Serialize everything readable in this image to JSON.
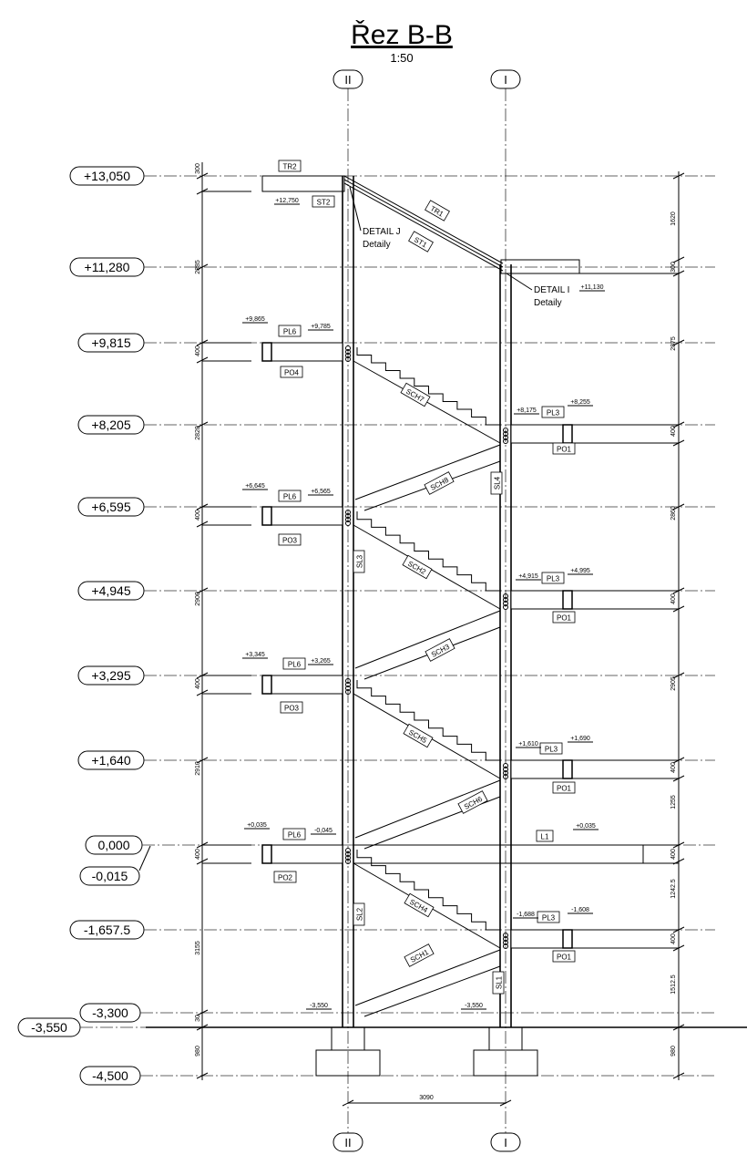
{
  "title": "Řez B-B",
  "scale": "1:50",
  "axes": {
    "left": "II",
    "right": "I"
  },
  "levels": [
    "+13,050",
    "+11,280",
    "+9,815",
    "+8,205",
    "+6,595",
    "+4,945",
    "+3,295",
    "+1,640",
    "0,000",
    "-0,015",
    "-1,657.5",
    "-3,300",
    "-3,550",
    "-4,500"
  ],
  "dims_left": [
    "300",
    "2885",
    "400",
    "2820",
    "400",
    "2900",
    "400",
    "2910",
    "400",
    "3155",
    "30",
    "980"
  ],
  "dims_right": [
    "1620",
    "300",
    "2875",
    "400",
    "2860",
    "400",
    "2905",
    "400",
    "1255",
    "400",
    "1242.5",
    "400",
    "1512.5",
    "980"
  ],
  "dim_bottom": "3090",
  "tags": [
    "TR2",
    "ST2",
    "TR1",
    "ST1",
    "PL6",
    "PL6",
    "PL6",
    "PL6",
    "PO4",
    "PO3",
    "PO3",
    "PO2",
    "PL3",
    "PL3",
    "PL3",
    "PL3",
    "PO1",
    "PO1",
    "PO1",
    "PO1",
    "SCH7",
    "SCH8",
    "SCH2",
    "SCH3",
    "SCH5",
    "SCH6",
    "SCH4",
    "SCH1",
    "SL4",
    "SL3",
    "SL2",
    "SL1",
    "L1"
  ],
  "spot_levels": [
    "+12,750",
    "+9,865",
    "+9,785",
    "+6,645",
    "+6,565",
    "+3,345",
    "+3,265",
    "+0,035",
    "-0,045",
    "+8,175",
    "+8,255",
    "+4,915",
    "+4,995",
    "+1,610",
    "+1,690",
    "+0,035",
    "-1,688",
    "-1,608",
    "-3,550",
    "-3,550",
    "+11,130"
  ],
  "details": [
    "DETAIL J",
    "Detaily",
    "DETAIL I",
    "Detaily"
  ]
}
